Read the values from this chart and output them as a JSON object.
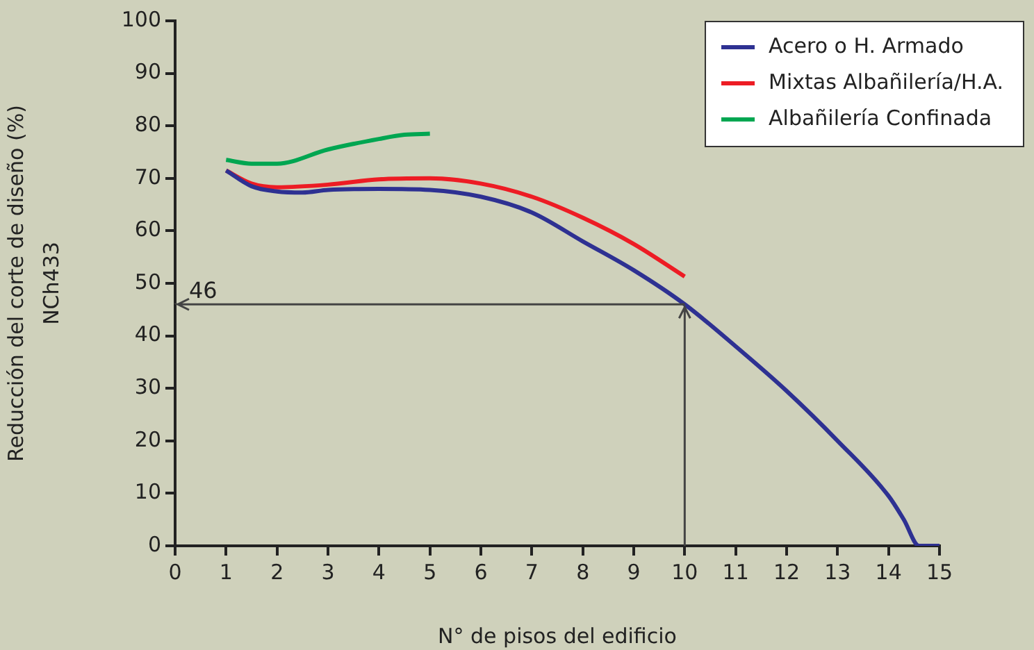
{
  "chart_data": {
    "type": "line",
    "xlabel": "N° de pisos del edificio",
    "ylabel": "Reducción del corte de diseño (%)\nNCh433",
    "xlim": [
      0,
      15
    ],
    "xticks": [
      0,
      1,
      2,
      3,
      4,
      5,
      6,
      7,
      8,
      9,
      10,
      11,
      12,
      13,
      14,
      15
    ],
    "ylim": [
      0,
      100
    ],
    "yticks": [
      0,
      10,
      20,
      30,
      40,
      50,
      60,
      70,
      80,
      90,
      100
    ],
    "grid": false,
    "legend": "top right",
    "marker": "none",
    "line_style": "solid",
    "series": [
      {
        "name": "Acero o H. Armado",
        "color": "#2e3192",
        "x": [
          1,
          1.5,
          2,
          2.5,
          3,
          4,
          5,
          6,
          7,
          8,
          9,
          10,
          11,
          12,
          13,
          14,
          14.3,
          14.6,
          15
        ],
        "values": [
          71.5,
          68.5,
          67.5,
          67.3,
          67.8,
          68,
          67.8,
          66.5,
          63.5,
          58,
          52.5,
          46,
          38,
          29.5,
          20,
          9.5,
          5,
          0,
          0
        ]
      },
      {
        "name": "Mixtas Albañilería/H.A.",
        "color": "#ed1c24",
        "x": [
          1,
          1.5,
          2,
          3,
          4,
          5,
          6,
          7,
          8,
          9,
          10
        ],
        "values": [
          71.5,
          69,
          68.3,
          68.8,
          69.8,
          70,
          69,
          66.5,
          62.5,
          57.5,
          51.3
        ]
      },
      {
        "name": "Albañilería Confinada",
        "color": "#00a651",
        "x": [
          1,
          1.5,
          2,
          3,
          4,
          4.5,
          5
        ],
        "values": [
          73.5,
          72.8,
          72.8,
          75.5,
          77.5,
          78.3,
          78.5
        ]
      }
    ],
    "ref_lines": [
      {
        "axis": "y",
        "value": 46,
        "label": "46",
        "color": "#444444"
      },
      {
        "axis": "x",
        "value": 10,
        "color": "#444444"
      }
    ]
  }
}
